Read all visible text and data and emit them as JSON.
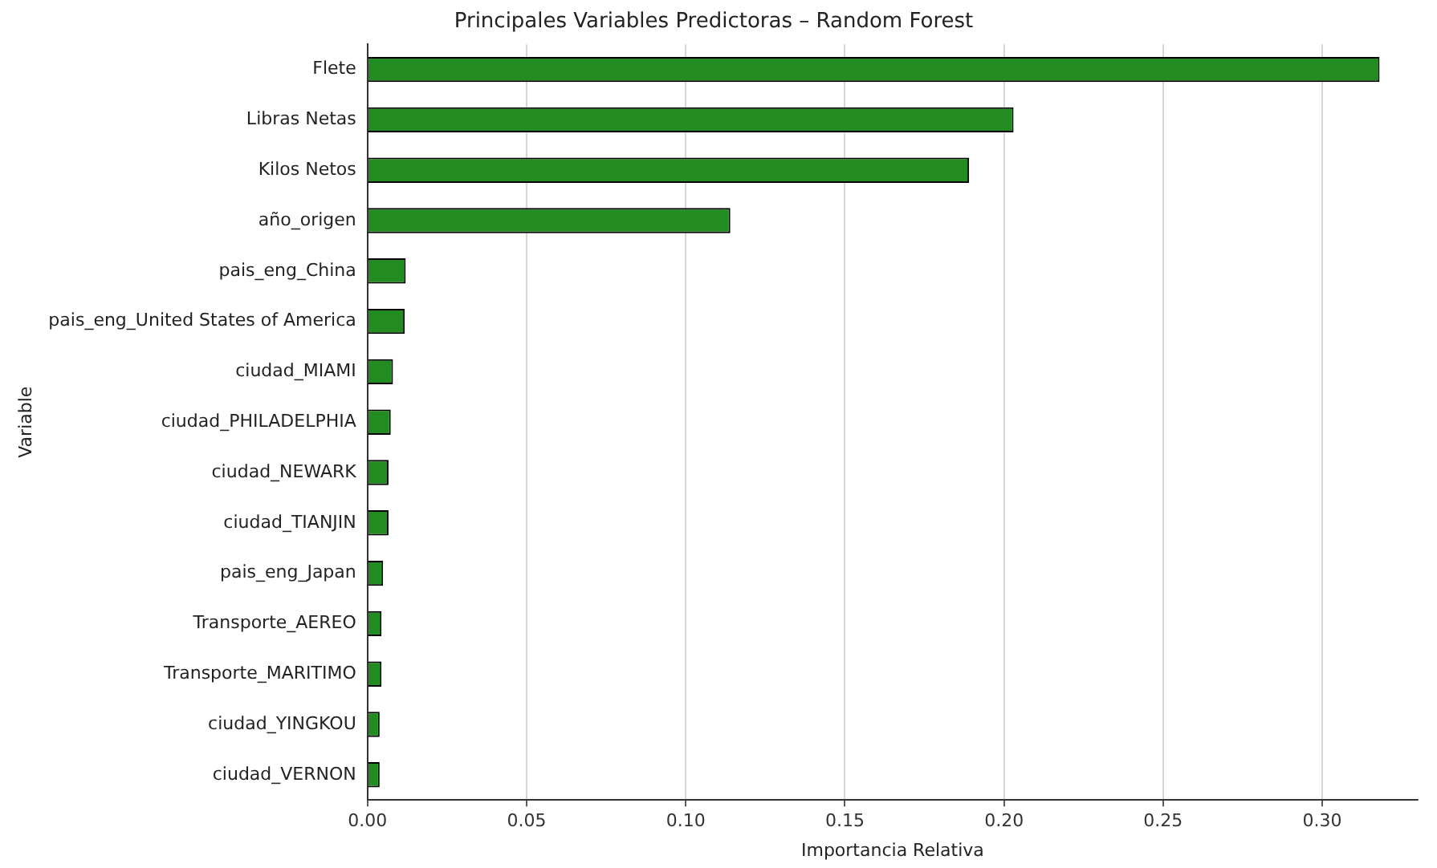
{
  "chart_data": {
    "type": "bar",
    "orientation": "horizontal",
    "title": "Principales Variables Predictoras – Random Forest",
    "xlabel": "Importancia Relativa",
    "ylabel": "Variable",
    "categories": [
      "Flete",
      "Libras Netas",
      "Kilos Netos",
      "año_origen",
      "pais_eng_China",
      "pais_eng_United States of America",
      "ciudad_MIAMI",
      "ciudad_PHILADELPHIA",
      "ciudad_NEWARK",
      "ciudad_TIANJIN",
      "pais_eng_Japan",
      "Transporte_AEREO",
      "Transporte_MARITIMO",
      "ciudad_YINGKOU",
      "ciudad_VERNON"
    ],
    "values": [
      0.318,
      0.203,
      0.189,
      0.114,
      0.012,
      0.0117,
      0.008,
      0.0073,
      0.0066,
      0.0066,
      0.0049,
      0.0044,
      0.0044,
      0.0038,
      0.0038
    ],
    "color": "#228b22",
    "xlim": [
      0,
      0.33
    ],
    "xticks": [
      {
        "value": 0,
        "label": "0.00"
      },
      {
        "value": 0.05,
        "label": "0.05"
      },
      {
        "value": 0.1,
        "label": "0.10"
      },
      {
        "value": 0.15,
        "label": "0.15"
      },
      {
        "value": 0.2,
        "label": "0.20"
      },
      {
        "value": 0.25,
        "label": "0.25"
      },
      {
        "value": 0.3,
        "label": "0.30"
      }
    ],
    "grid": "x",
    "legend": false
  }
}
